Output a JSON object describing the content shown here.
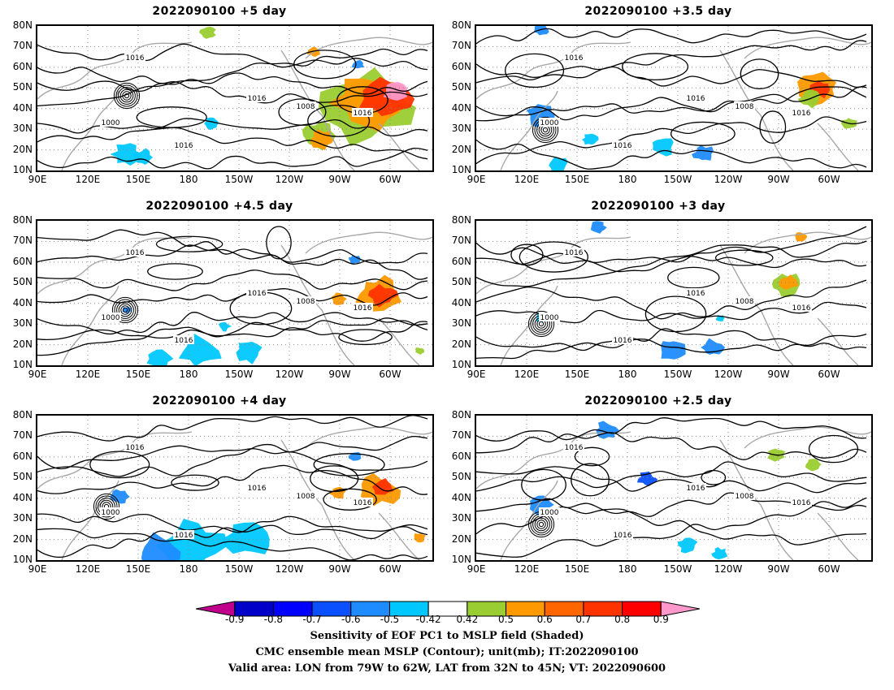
{
  "panels": [
    {
      "title": "2022090100 +5 day"
    },
    {
      "title": "2022090100 +3.5 day"
    },
    {
      "title": "2022090100 +4.5 day"
    },
    {
      "title": "2022090100 +3 day"
    },
    {
      "title": "2022090100 +4 day"
    },
    {
      "title": "2022090100 +2.5 day"
    }
  ],
  "axes": {
    "y_ticks": [
      "80N",
      "70N",
      "60N",
      "50N",
      "40N",
      "30N",
      "20N",
      "10N"
    ],
    "x_ticks": [
      "90E",
      "120E",
      "150E",
      "180",
      "150W",
      "120W",
      "90W",
      "60W"
    ]
  },
  "colorbar": {
    "levels": [
      "-0.9",
      "-0.8",
      "-0.7",
      "-0.6",
      "-0.5",
      "-0.42",
      "0.42",
      "0.5",
      "0.6",
      "0.7",
      "0.8",
      "0.9"
    ],
    "colors": [
      "#c0008c",
      "#0000c8",
      "#0000ff",
      "#0a50ff",
      "#1e8cff",
      "#00c8ff",
      "#ffffff",
      "#9acd32",
      "#ff9900",
      "#ff6600",
      "#ff3300",
      "#ff0000",
      "#ff99cc"
    ]
  },
  "caption": {
    "line1": "Sensitivity of EOF PC1 to MSLP field (Shaded)",
    "line2": "CMC ensemble mean MSLP (Contour); unit(mb); IT:2022090100",
    "line3": "Valid area: LON from 79W to 62W, LAT from 32N to 45N; VT: 2022090600"
  },
  "contour_labels": [
    "1016",
    "1008",
    "1000"
  ]
}
